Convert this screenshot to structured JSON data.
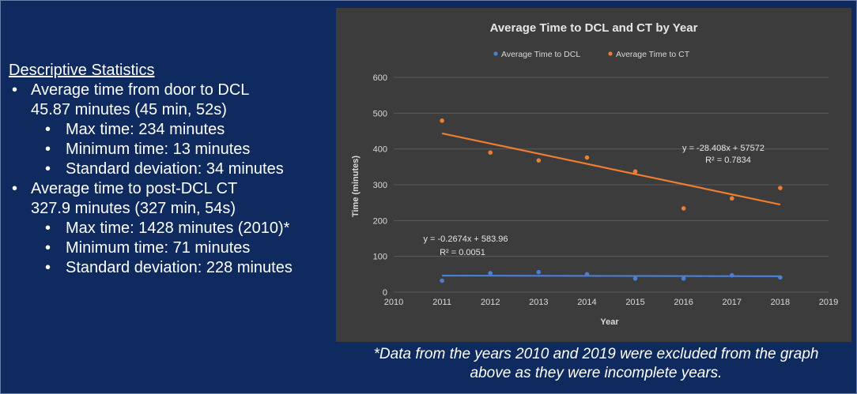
{
  "stats": {
    "heading": "Descriptive Statistics",
    "dcl": {
      "line1": "Average time from door to DCL",
      "line2": "45.87 minutes (45 min, 52s)",
      "items": [
        "Max time: 234 minutes",
        "Minimum time: 13 minutes",
        "Standard deviation: 34 minutes"
      ]
    },
    "ct": {
      "line1": "Average time to post-DCL CT",
      "line2": "327.9 minutes (327 min, 54s)",
      "items": [
        "Max time: 1428 minutes (2010)*",
        "Minimum time: 71 minutes",
        "Standard deviation: 228 minutes"
      ]
    }
  },
  "footnote": {
    "line1": "*Data from the years 2010 and 2019 were excluded from the graph",
    "line2": "above as they were incomplete years."
  },
  "colors": {
    "panel": "#3c3c3c",
    "dcl": "#4a7fd4",
    "ct": "#ed7d31",
    "grid": "#5a5a5a",
    "text": "#d9d9d9"
  },
  "chart_data": {
    "type": "scatter",
    "title": "Average Time to DCL and CT by Year",
    "xlabel": "Year",
    "ylabel": "Time (minutes)",
    "xlim": [
      2010,
      2019
    ],
    "ylim": [
      0,
      600
    ],
    "xticks": [
      2010,
      2011,
      2012,
      2013,
      2014,
      2015,
      2016,
      2017,
      2018,
      2019
    ],
    "yticks": [
      0,
      100,
      200,
      300,
      400,
      500,
      600
    ],
    "grid": true,
    "legend": "top",
    "series": [
      {
        "name": "Average Time to DCL",
        "x": [
          2011,
          2012,
          2013,
          2014,
          2015,
          2016,
          2017,
          2018
        ],
        "y": [
          32,
          53,
          56,
          50,
          38,
          38,
          47,
          41
        ],
        "trendline": {
          "slope": -0.2674,
          "intercept": 583.96,
          "x_from": 2011,
          "x_to": 2018
        },
        "equation": "y = -0.2674x + 583.96",
        "r2": "R² = 0.0051"
      },
      {
        "name": "Average Time to CT",
        "x": [
          2011,
          2012,
          2013,
          2014,
          2015,
          2016,
          2017,
          2018
        ],
        "y": [
          479,
          390,
          368,
          376,
          337,
          234,
          262,
          291
        ],
        "trendline": {
          "slope": -28.408,
          "intercept": 57572,
          "x_from": 2011,
          "x_to": 2018
        },
        "equation": "y = -28.408x + 57572",
        "r2": "R² = 0.7834"
      }
    ]
  }
}
